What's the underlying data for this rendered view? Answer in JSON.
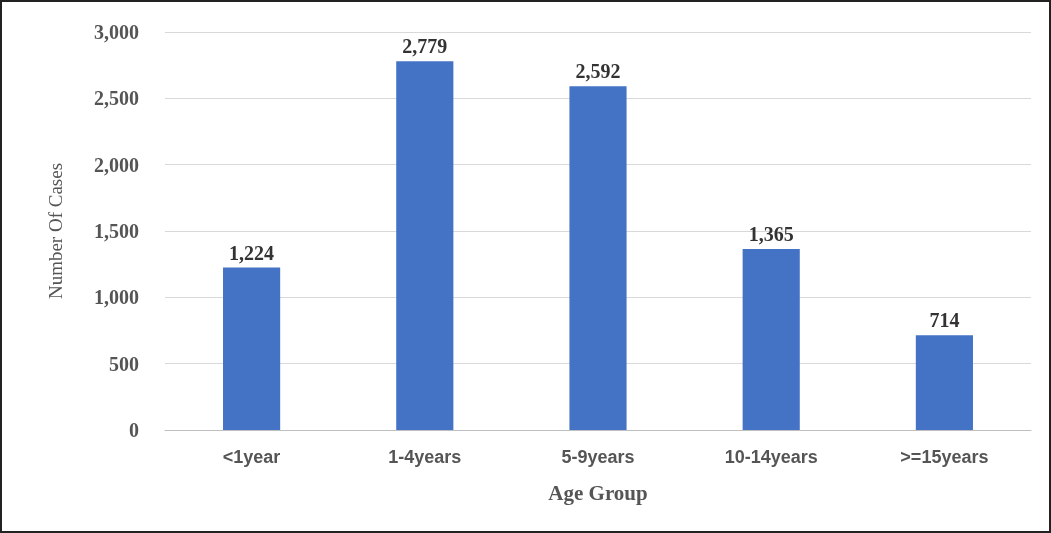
{
  "chart_data": {
    "type": "bar",
    "xlabel": "Age Group",
    "ylabel": "Number Of Cases",
    "categories": [
      "<1year",
      "1-4years",
      "5-9years",
      "10-14years",
      ">=15years"
    ],
    "values": [
      1224,
      2779,
      2592,
      1365,
      714
    ],
    "value_labels": [
      "1,224",
      "2,779",
      "2,592",
      "1,365",
      "714"
    ],
    "color": "#4472c4",
    "ylim": [
      0,
      3000
    ],
    "yticks": [
      0,
      500,
      {
        "value": 1000,
        "label": "1,000"
      },
      {
        "value": 1500,
        "label": "1,500"
      },
      {
        "value": 2000,
        "label": "2,000"
      },
      {
        "value": 2500,
        "label": "2,500"
      },
      {
        "value": 3000,
        "label": "3,000"
      }
    ],
    "grid": "y"
  }
}
